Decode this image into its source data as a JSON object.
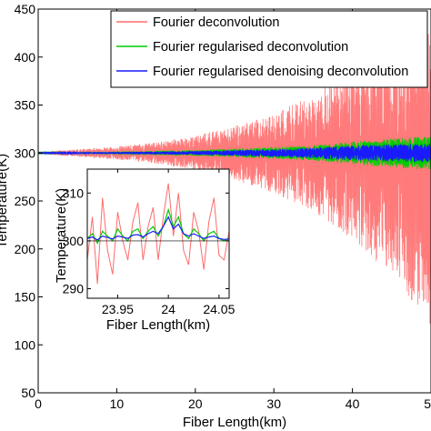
{
  "chart_data": [
    {
      "type": "line",
      "title": "",
      "xlabel": "Fiber Length(km)",
      "ylabel": "Temperature(K)",
      "xlim": [
        0,
        50
      ],
      "ylim": [
        50,
        450
      ],
      "xticks": [
        0,
        10,
        20,
        30,
        40,
        50
      ],
      "xtick_labels": [
        "0",
        "10",
        "20",
        "30",
        "40",
        "50"
      ],
      "yticks": [
        50,
        100,
        150,
        200,
        250,
        300,
        350,
        400,
        450
      ],
      "ytick_labels": [
        "50",
        "100",
        "150",
        "200",
        "250",
        "300",
        "350",
        "400",
        "450"
      ],
      "grid": false,
      "legend_position": "top-right",
      "series": [
        {
          "name": "Fourier deconvolution",
          "color": "#ff6b6b",
          "x": [
            0,
            5,
            10,
            15,
            20,
            25,
            30,
            35,
            40,
            42,
            44,
            46,
            48,
            50
          ],
          "y_lower": [
            299,
            296,
            293,
            289,
            282,
            272,
            258,
            240,
            210,
            195,
            180,
            165,
            140,
            120
          ],
          "y_upper": [
            301,
            304,
            307,
            311,
            318,
            328,
            342,
            360,
            390,
            405,
            410,
            420,
            430,
            435
          ]
        },
        {
          "name": "Fourier regularised deconvolution",
          "color": "#00cc00",
          "x": [
            0,
            10,
            20,
            30,
            35,
            40,
            45,
            50
          ],
          "y_lower": [
            299.5,
            298.5,
            297,
            294,
            292,
            288,
            285,
            282
          ],
          "y_upper": [
            300.5,
            301.5,
            303,
            306,
            308,
            312,
            315,
            318
          ]
        },
        {
          "name": "Fourier regularised denoising deconvolution",
          "color": "#1a1aff",
          "x": [
            0,
            10,
            20,
            30,
            35,
            40,
            45,
            50
          ],
          "y_lower": [
            299.7,
            299,
            298,
            296,
            294.5,
            292,
            291,
            290
          ],
          "y_upper": [
            300.3,
            301,
            302,
            304,
            305.5,
            308,
            309,
            310
          ]
        }
      ]
    },
    {
      "type": "line",
      "title": "",
      "xlabel": "Fiber Length(km)",
      "ylabel": "Temperature(K)",
      "xlim": [
        23.92,
        24.06
      ],
      "ylim": [
        288,
        315
      ],
      "xticks": [
        23.95,
        24,
        24.05
      ],
      "xtick_labels": [
        "23.95",
        "24",
        "24.05"
      ],
      "yticks": [
        290,
        300,
        310
      ],
      "ytick_labels": [
        "290",
        "300",
        "310"
      ],
      "grid": false,
      "series": [
        {
          "name": "Fourier deconvolution",
          "color": "#ff6b6b",
          "x": [
            23.92,
            23.925,
            23.93,
            23.935,
            23.94,
            23.945,
            23.95,
            23.955,
            23.96,
            23.965,
            23.97,
            23.975,
            23.98,
            23.985,
            23.99,
            23.995,
            24.0,
            24.005,
            24.01,
            24.015,
            24.02,
            24.025,
            24.03,
            24.035,
            24.04,
            24.045,
            24.05,
            24.055,
            24.06
          ],
          "y": [
            296,
            305,
            291,
            309,
            298,
            293,
            306,
            300,
            296,
            304,
            308,
            296,
            303,
            307,
            296,
            305,
            312,
            301,
            310,
            298,
            295,
            306,
            302,
            294,
            304,
            309,
            297,
            296,
            302
          ]
        },
        {
          "name": "Fourier regularised deconvolution",
          "color": "#00cc00",
          "x": [
            23.92,
            23.925,
            23.93,
            23.935,
            23.94,
            23.945,
            23.95,
            23.955,
            23.96,
            23.965,
            23.97,
            23.975,
            23.98,
            23.985,
            23.99,
            23.995,
            24.0,
            24.005,
            24.01,
            24.015,
            24.02,
            24.025,
            24.03,
            24.035,
            24.04,
            24.045,
            24.05,
            24.055,
            24.06
          ],
          "y": [
            300.5,
            301.5,
            299.5,
            302,
            301,
            300,
            302.5,
            301,
            300,
            302,
            302.5,
            300.5,
            302,
            303,
            301,
            303,
            306.5,
            303,
            305,
            301.5,
            300.5,
            302.5,
            301.5,
            300,
            301.5,
            302,
            300.5,
            300,
            300.5
          ]
        },
        {
          "name": "Fourier regularised denoising deconvolution",
          "color": "#1a1aff",
          "x": [
            23.92,
            23.925,
            23.93,
            23.935,
            23.94,
            23.945,
            23.95,
            23.955,
            23.96,
            23.965,
            23.97,
            23.975,
            23.98,
            23.985,
            23.99,
            23.995,
            24.0,
            24.005,
            24.01,
            24.015,
            24.02,
            24.025,
            24.03,
            24.035,
            24.04,
            24.045,
            24.05,
            24.055,
            24.06
          ],
          "y": [
            300.5,
            300.8,
            300.2,
            301,
            300.7,
            300.4,
            301,
            300.8,
            300.5,
            301.2,
            301.3,
            300.8,
            301.5,
            302,
            301.5,
            303,
            305,
            302.5,
            303.5,
            301.5,
            301,
            301.5,
            301,
            300.5,
            300.8,
            301,
            300.5,
            300.3,
            300.4
          ]
        }
      ]
    }
  ]
}
